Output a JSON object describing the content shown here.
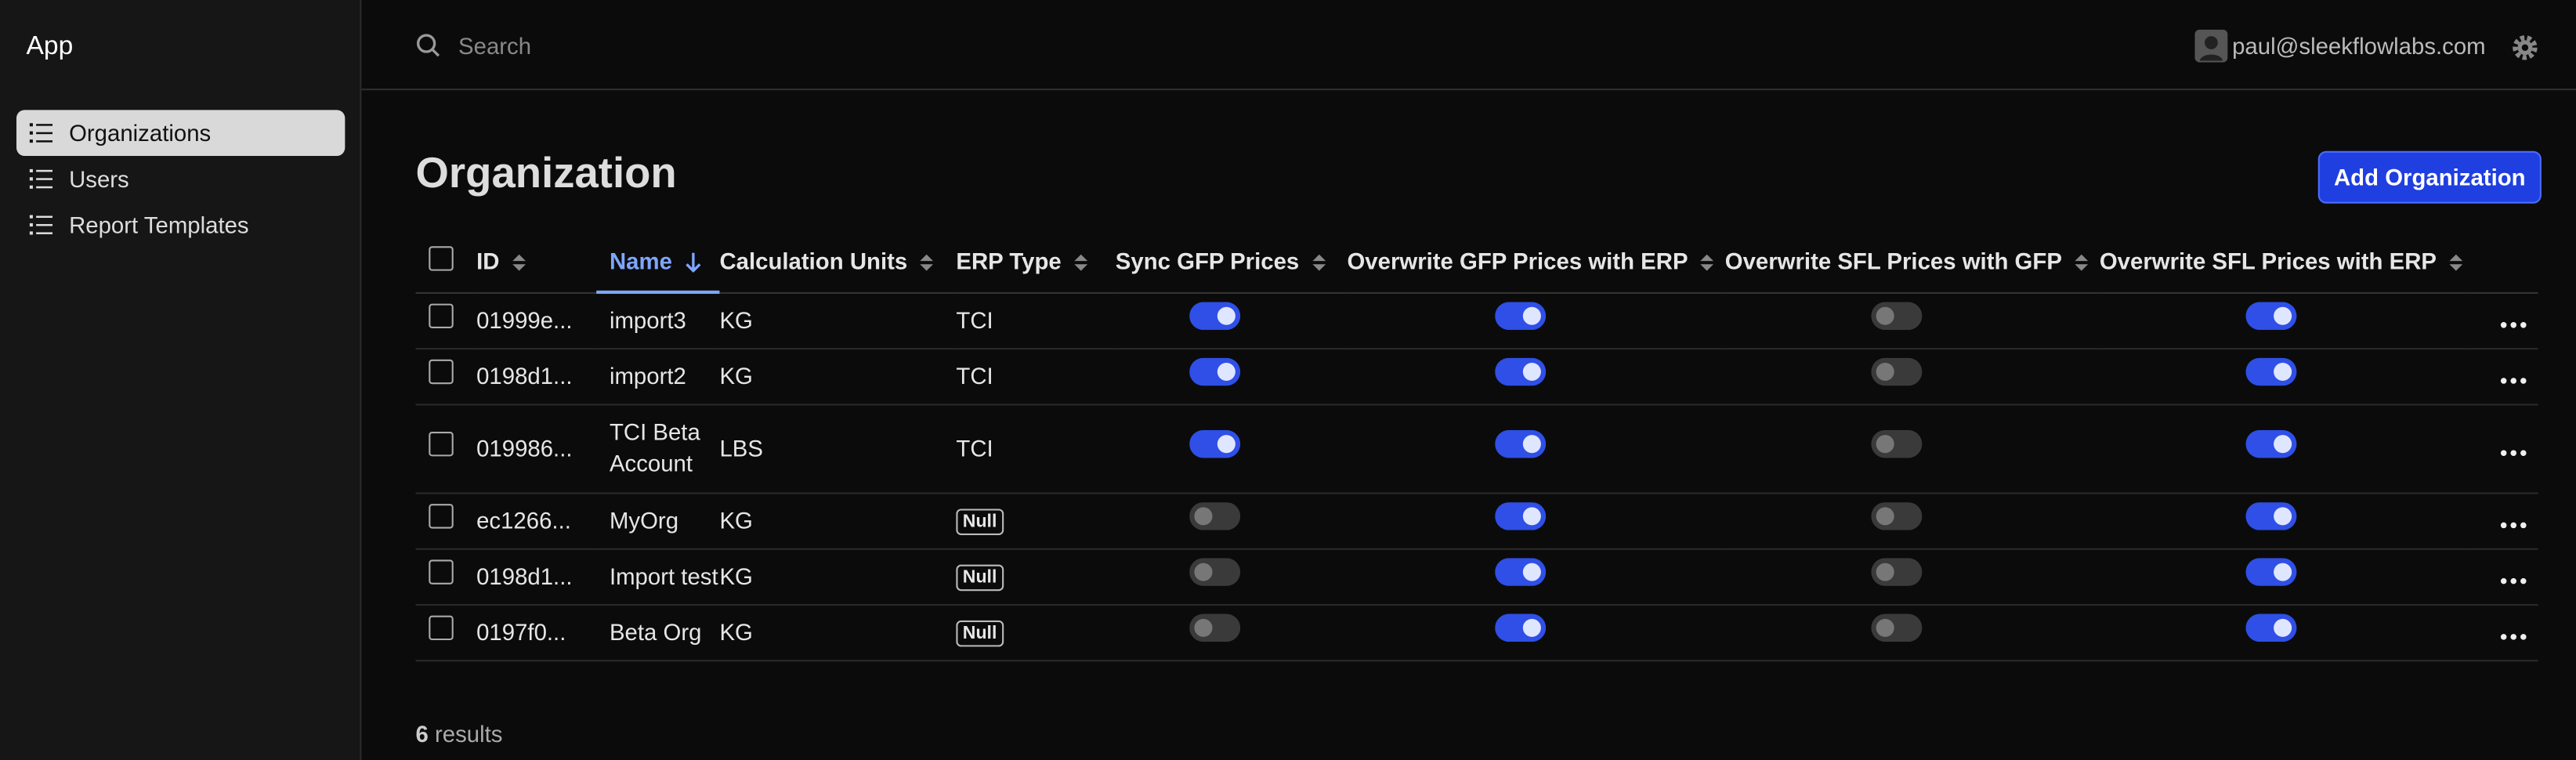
{
  "sidebar": {
    "app_title": "App",
    "nav": [
      "Organizations",
      "Users",
      "Report Templates"
    ]
  },
  "topbar": {
    "search_placeholder": "Search",
    "user_email": "paul@sleekflowlabs.com"
  },
  "page": {
    "title": "Organization",
    "add_button": "Add Organization"
  },
  "table": {
    "columns": [
      "ID",
      "Name",
      "Calculation Units",
      "ERP Type",
      "Sync GFP Prices",
      "Overwrite GFP Prices with ERP",
      "Overwrite SFL Prices with GFP",
      "Overwrite SFL Prices with ERP"
    ],
    "null_badge": "Null",
    "rows": [
      [
        "01999e...",
        "import3",
        "KG",
        "TCI",
        true,
        true,
        false,
        true
      ],
      [
        "0198d1...",
        "import2",
        "KG",
        "TCI",
        true,
        true,
        false,
        true
      ],
      [
        "019986...",
        "TCI Beta Account",
        "LBS",
        "TCI",
        true,
        true,
        false,
        true
      ],
      [
        "ec1266...",
        "MyOrg",
        "KG",
        null,
        false,
        true,
        false,
        true
      ],
      [
        "0198d1...",
        "Import test",
        "KG",
        null,
        false,
        true,
        false,
        true
      ],
      [
        "0197f0...",
        "Beta Org",
        "KG",
        null,
        false,
        true,
        false,
        true
      ]
    ],
    "result_count": 6,
    "result_label": "results"
  }
}
